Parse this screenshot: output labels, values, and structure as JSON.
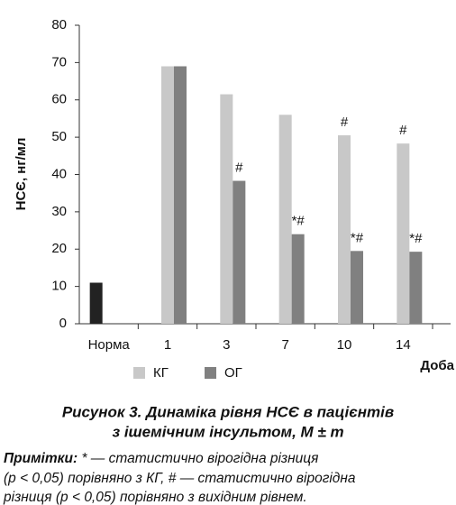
{
  "chart_data": {
    "type": "bar",
    "y_label": "НСЄ, нг/мл",
    "x_label": "Доба",
    "categories": [
      "Норма",
      "1",
      "3",
      "7",
      "10",
      "14"
    ],
    "series": [
      {
        "color": "#222222",
        "values": [
          11,
          null,
          null,
          null,
          null,
          null
        ]
      },
      {
        "name": "КГ",
        "color": "#c8c8c8",
        "values": [
          null,
          69,
          61.5,
          56,
          50.5,
          48.3
        ],
        "markers": [
          null,
          null,
          null,
          null,
          "#",
          "#"
        ]
      },
      {
        "name": "ОГ",
        "color": "#808080",
        "values": [
          null,
          69,
          38.3,
          24,
          19.5,
          19.3
        ],
        "markers": [
          null,
          null,
          "#",
          "*#",
          "*#",
          "*#"
        ]
      }
    ],
    "ylim": [
      0,
      80
    ],
    "yticks": [
      0,
      10,
      20,
      30,
      40,
      50,
      60,
      70,
      80
    ],
    "grid": false
  },
  "caption": [
    "Рисунок 3. Динаміка рівня НСЄ в пацієнтів",
    "з ішемічним інсультом, M ± m"
  ],
  "notes_label": "Примітки:",
  "notes": [
    "* — статистично вірогідна різниця",
    "(p < 0,05) порівняно з КГ, # — статистично вірогідна",
    "різниця (p < 0,05) порівняно з вихідним рівнем."
  ]
}
